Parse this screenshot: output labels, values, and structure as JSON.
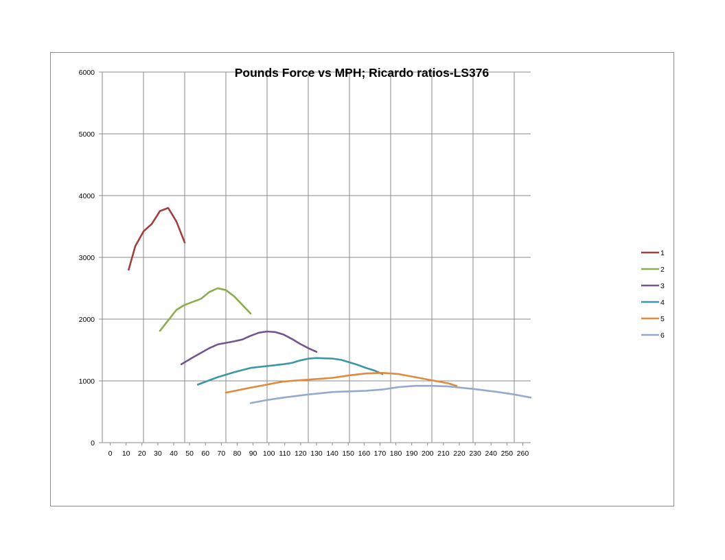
{
  "chart_data": {
    "type": "line",
    "title": "Pounds Force vs MPH; Ricardo ratios-LS376",
    "xlabel": "",
    "ylabel": "",
    "xlim": [
      0,
      260
    ],
    "ylim": [
      0,
      6000
    ],
    "x_ticks": [
      0,
      10,
      20,
      30,
      40,
      50,
      60,
      70,
      80,
      90,
      100,
      110,
      120,
      130,
      140,
      150,
      160,
      170,
      180,
      190,
      200,
      210,
      220,
      230,
      240,
      250,
      260
    ],
    "y_ticks": [
      0,
      1000,
      2000,
      3000,
      4000,
      5000,
      6000
    ],
    "grid": true,
    "legend_position": "right",
    "series": [
      {
        "name": "1",
        "color": "#a0403c",
        "points": [
          [
            16,
            2800
          ],
          [
            20,
            3180
          ],
          [
            25,
            3420
          ],
          [
            30,
            3540
          ],
          [
            35,
            3750
          ],
          [
            40,
            3800
          ],
          [
            45,
            3580
          ],
          [
            50,
            3240
          ]
        ]
      },
      {
        "name": "2",
        "color": "#8cac4c",
        "points": [
          [
            35,
            1810
          ],
          [
            40,
            1980
          ],
          [
            45,
            2150
          ],
          [
            50,
            2230
          ],
          [
            55,
            2280
          ],
          [
            60,
            2330
          ],
          [
            65,
            2440
          ],
          [
            70,
            2500
          ],
          [
            75,
            2470
          ],
          [
            80,
            2370
          ],
          [
            85,
            2230
          ],
          [
            90,
            2090
          ]
        ]
      },
      {
        "name": "3",
        "color": "#72558d",
        "points": [
          [
            48,
            1270
          ],
          [
            55,
            1380
          ],
          [
            65,
            1530
          ],
          [
            70,
            1590
          ],
          [
            80,
            1640
          ],
          [
            85,
            1670
          ],
          [
            90,
            1730
          ],
          [
            95,
            1780
          ],
          [
            100,
            1800
          ],
          [
            105,
            1790
          ],
          [
            110,
            1750
          ],
          [
            115,
            1680
          ],
          [
            120,
            1600
          ],
          [
            125,
            1530
          ],
          [
            130,
            1470
          ]
        ]
      },
      {
        "name": "4",
        "color": "#3b97a8",
        "points": [
          [
            58,
            940
          ],
          [
            70,
            1060
          ],
          [
            80,
            1140
          ],
          [
            90,
            1210
          ],
          [
            100,
            1240
          ],
          [
            110,
            1270
          ],
          [
            115,
            1290
          ],
          [
            120,
            1330
          ],
          [
            125,
            1360
          ],
          [
            130,
            1370
          ],
          [
            140,
            1360
          ],
          [
            145,
            1340
          ],
          [
            150,
            1300
          ],
          [
            155,
            1260
          ],
          [
            160,
            1210
          ],
          [
            165,
            1170
          ],
          [
            170,
            1110
          ]
        ]
      },
      {
        "name": "5",
        "color": "#e08a3c",
        "points": [
          [
            75,
            810
          ],
          [
            90,
            890
          ],
          [
            100,
            940
          ],
          [
            110,
            990
          ],
          [
            120,
            1010
          ],
          [
            130,
            1030
          ],
          [
            140,
            1050
          ],
          [
            150,
            1090
          ],
          [
            160,
            1120
          ],
          [
            170,
            1130
          ],
          [
            180,
            1110
          ],
          [
            190,
            1060
          ],
          [
            200,
            1010
          ],
          [
            210,
            960
          ],
          [
            215,
            920
          ]
        ]
      },
      {
        "name": "6",
        "color": "#94a9cf",
        "points": [
          [
            90,
            640
          ],
          [
            100,
            690
          ],
          [
            110,
            730
          ],
          [
            125,
            780
          ],
          [
            140,
            820
          ],
          [
            150,
            830
          ],
          [
            160,
            840
          ],
          [
            170,
            860
          ],
          [
            180,
            900
          ],
          [
            190,
            920
          ],
          [
            200,
            920
          ],
          [
            210,
            910
          ],
          [
            225,
            870
          ],
          [
            240,
            820
          ],
          [
            250,
            780
          ],
          [
            260,
            730
          ]
        ]
      }
    ]
  }
}
